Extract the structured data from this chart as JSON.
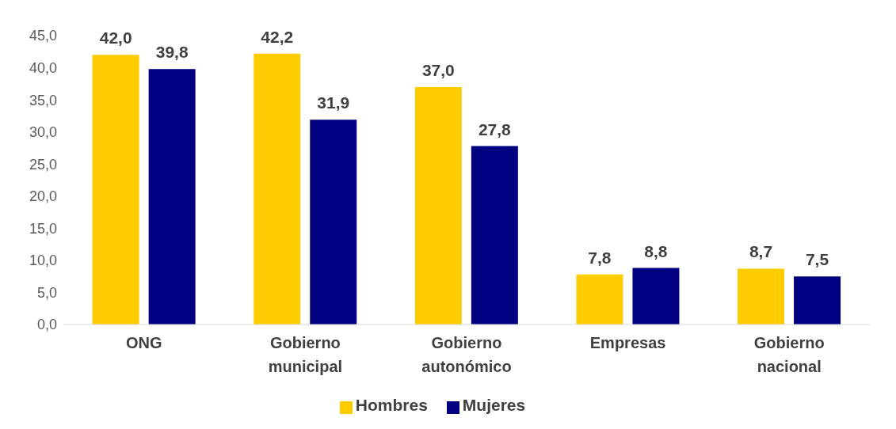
{
  "chart_data": {
    "type": "bar",
    "categories": [
      "ONG",
      "Gobierno municipal",
      "Gobierno autonómico",
      "Empresas",
      "Gobierno nacional"
    ],
    "series": [
      {
        "name": "Hombres",
        "color": "#ffcc00",
        "values": [
          42.0,
          42.2,
          37.0,
          7.8,
          8.7
        ],
        "value_labels": [
          "42,0",
          "42,2",
          "37,0",
          "7,8",
          "8,7"
        ]
      },
      {
        "name": "Mujeres",
        "color": "#000080",
        "values": [
          39.8,
          31.9,
          27.8,
          8.8,
          7.5
        ],
        "value_labels": [
          "39,8",
          "31,9",
          "27,8",
          "8,8",
          "7,5"
        ]
      }
    ],
    "ylim": [
      0,
      45
    ],
    "yticks": [
      {
        "value": 0,
        "label": "0,0"
      },
      {
        "value": 5,
        "label": "5,0"
      },
      {
        "value": 10,
        "label": "10,0"
      },
      {
        "value": 15,
        "label": "15,0"
      },
      {
        "value": 20,
        "label": "20,0"
      },
      {
        "value": 25,
        "label": "25,0"
      },
      {
        "value": 30,
        "label": "30,0"
      },
      {
        "value": 35,
        "label": "35,0"
      },
      {
        "value": 40,
        "label": "40,0"
      },
      {
        "value": 45,
        "label": "45,0"
      }
    ],
    "grid": false,
    "legend": "bottom"
  }
}
